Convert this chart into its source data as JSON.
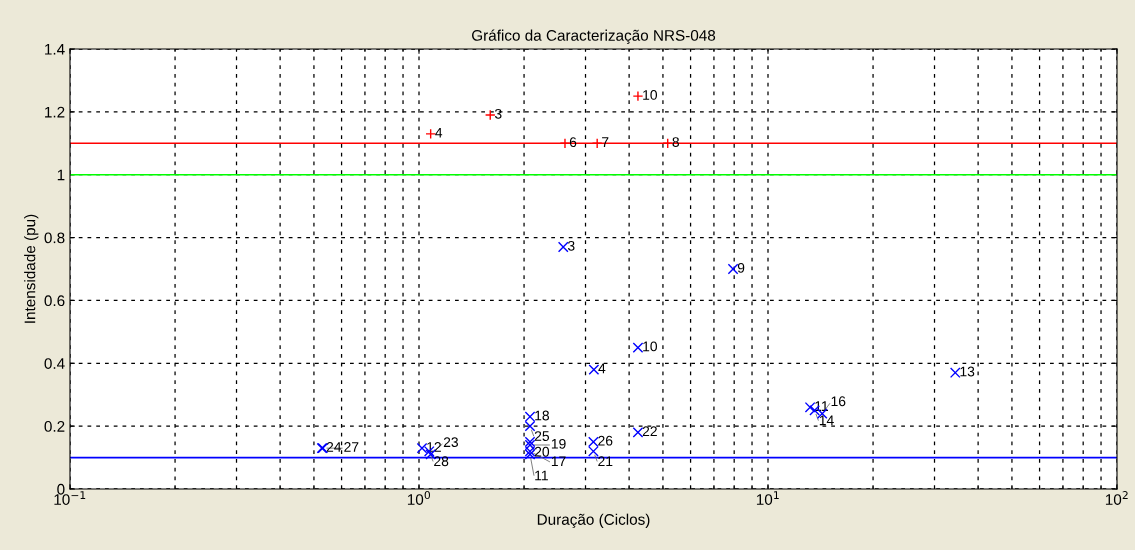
{
  "chart_data": {
    "type": "scatter",
    "title": "Gráfico da Caracterização NRS-048",
    "xlabel": "Duração (Ciclos)",
    "ylabel": "Intensidade (pu)",
    "log": "x",
    "grid": true,
    "xlim": [
      0.1,
      100
    ],
    "xticks": [
      {
        "value": 0.1,
        "label": "10$^{−1}$"
      },
      {
        "value": 1,
        "label": "10$^{0}$"
      },
      {
        "value": 10,
        "label": "10$^{1}$"
      },
      {
        "value": 100,
        "label": "10$^{2}$"
      }
    ],
    "ylim": [
      0,
      1.4
    ],
    "yticks": [
      0,
      0.2,
      0.4,
      0.6,
      0.8,
      1,
      1.2,
      1.4
    ],
    "series": [
      {
        "color": "#ff0000",
        "marker": "plus",
        "x": [
          1.08,
          1.6,
          2.62,
          3.24,
          4.24,
          5.16
        ],
        "values": [
          1.13,
          1.19,
          1.1,
          1.1,
          1.25,
          1.1
        ]
      },
      {
        "color": "#0000ff",
        "marker": "cross",
        "x": [
          2.59,
          7.94,
          4.24,
          3.17,
          34.4,
          13.2,
          13.6,
          14.3,
          0.527,
          0.53,
          1.02,
          1.07,
          1.08,
          2.08,
          2.08,
          2.08,
          2.08,
          2.08,
          2.08,
          3.16,
          3.16,
          4.24
        ],
        "values": [
          0.77,
          0.7,
          0.45,
          0.38,
          0.37,
          0.26,
          0.25,
          0.24,
          0.13,
          0.13,
          0.13,
          0.12,
          0.11,
          0.23,
          0.2,
          0.15,
          0.14,
          0.12,
          0.11,
          0.15,
          0.12,
          0.18
        ]
      }
    ],
    "annotations": [
      {
        "text": "4",
        "x": 1.08,
        "y": 1.13
      },
      {
        "text": "3",
        "x": 1.6,
        "y": 1.19
      },
      {
        "text": "6",
        "x": 2.62,
        "y": 1.1
      },
      {
        "text": "7",
        "x": 3.24,
        "y": 1.1
      },
      {
        "text": "10",
        "x": 4.24,
        "y": 1.25
      },
      {
        "text": "8",
        "x": 5.16,
        "y": 1.1
      },
      {
        "text": "3",
        "x": 2.59,
        "y": 0.77
      },
      {
        "text": "9",
        "x": 7.94,
        "y": 0.7
      },
      {
        "text": "10",
        "x": 4.24,
        "y": 0.45
      },
      {
        "text": "4",
        "x": 3.17,
        "y": 0.38
      },
      {
        "text": "13",
        "x": 34.4,
        "y": 0.37
      },
      {
        "text": "11",
        "x": 13.2,
        "y": 0.26
      },
      {
        "text": "14",
        "x": 13.6,
        "y": 0.25
      },
      {
        "text": "16",
        "x": 14.3,
        "y": 0.24
      },
      {
        "text": "24",
        "x": 0.527,
        "y": 0.13
      },
      {
        "text": "27",
        "x": 0.53,
        "y": 0.13
      },
      {
        "text": "12",
        "x": 1.02,
        "y": 0.13
      },
      {
        "text": "28",
        "x": 1.07,
        "y": 0.12
      },
      {
        "text": "23",
        "x": 1.08,
        "y": 0.11
      },
      {
        "text": "18",
        "x": 2.08,
        "y": 0.23
      },
      {
        "text": "25",
        "x": 2.08,
        "y": 0.2
      },
      {
        "text": "20",
        "x": 2.08,
        "y": 0.15
      },
      {
        "text": "19",
        "x": 2.08,
        "y": 0.14
      },
      {
        "text": "17",
        "x": 2.08,
        "y": 0.12
      },
      {
        "text": "11",
        "x": 2.08,
        "y": 0.11
      },
      {
        "text": "26",
        "x": 3.16,
        "y": 0.15
      },
      {
        "text": "21",
        "x": 3.16,
        "y": 0.12
      },
      {
        "text": "22",
        "x": 4.24,
        "y": 0.18
      }
    ],
    "ref_lines": [
      {
        "axis": "y",
        "value": 1.1,
        "color": "#ff0000"
      },
      {
        "axis": "y",
        "value": 1,
        "color": "#00ff00"
      },
      {
        "axis": "y",
        "value": 0.1,
        "color": "#0000ff"
      }
    ]
  }
}
